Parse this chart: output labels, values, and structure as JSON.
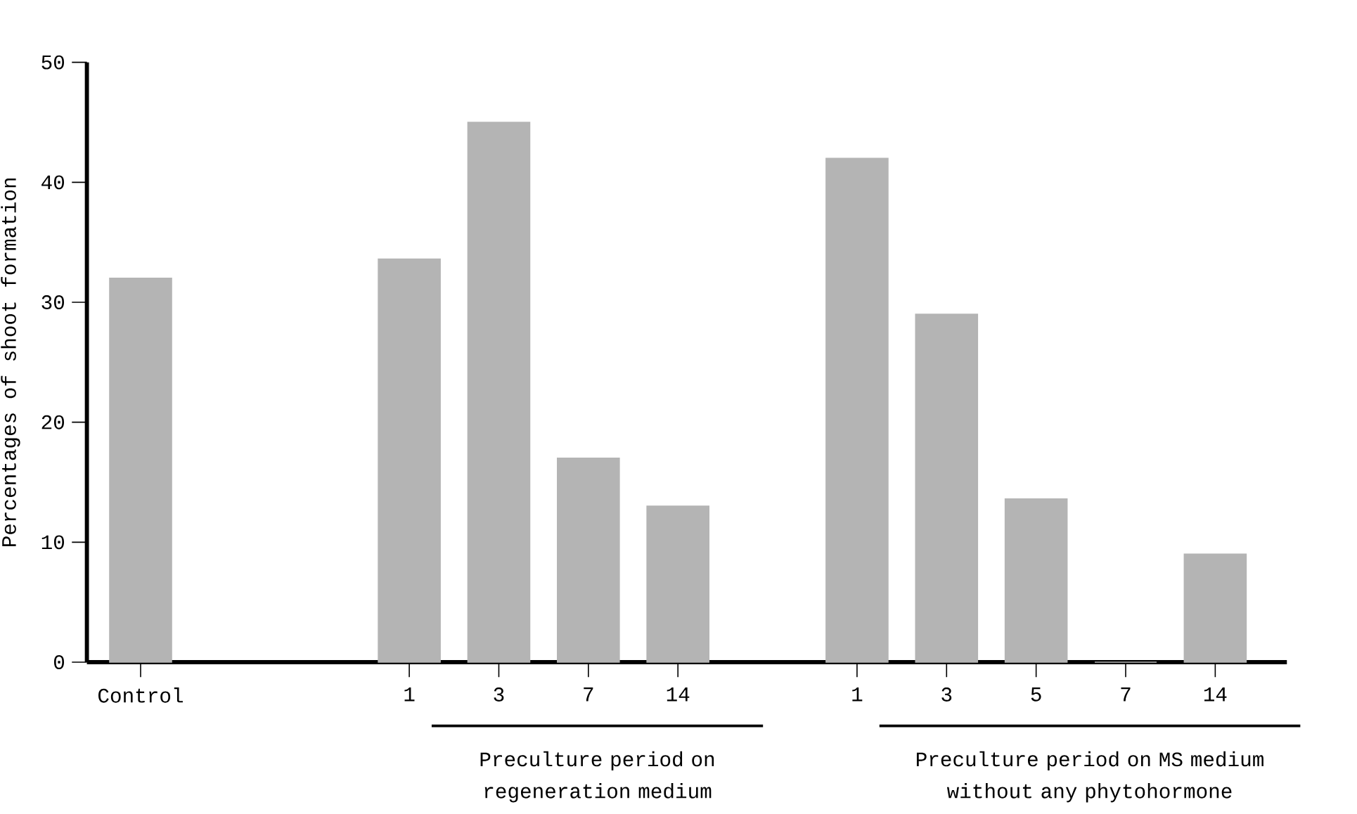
{
  "chart_data": {
    "type": "bar",
    "ylabel": "Percentages of shoot formation",
    "categories": [
      "Control",
      null,
      null,
      "1",
      "3",
      "7",
      "14",
      null,
      "1",
      "3",
      "5",
      "7",
      "14"
    ],
    "values": [
      32,
      null,
      null,
      33.6,
      45,
      17,
      13,
      null,
      42,
      29,
      13.6,
      0,
      9
    ],
    "color": "#b4b4b4",
    "ylim": [
      0,
      50
    ],
    "yticks": [
      0,
      10,
      20,
      30,
      40,
      50
    ],
    "grid": false,
    "annotations": [
      "Preculture period on regeneration medium",
      "Preculture period on MS medium without any phytohormone"
    ]
  }
}
